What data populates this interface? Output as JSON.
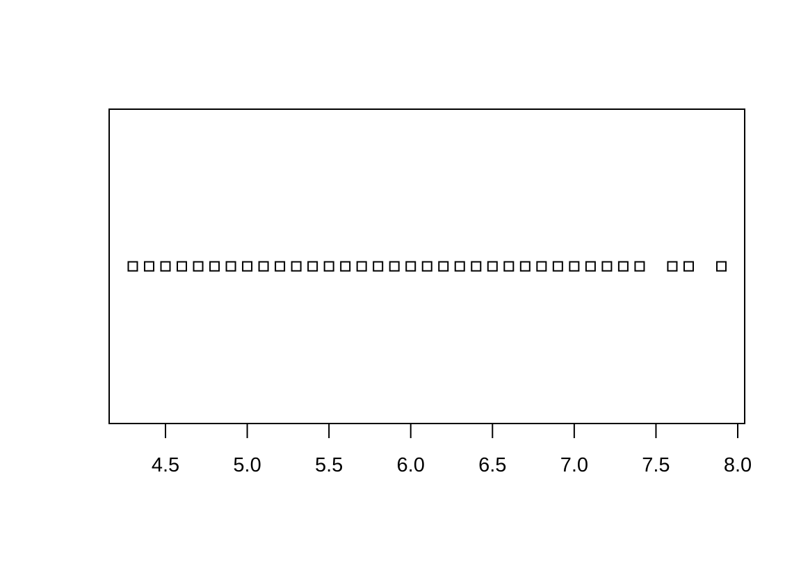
{
  "chart_data": {
    "type": "scatter",
    "title": "",
    "xlabel": "",
    "ylabel": "",
    "xlim": [
      4.3,
      7.9
    ],
    "x_ticks": [
      "4.5",
      "5.0",
      "5.5",
      "6.0",
      "6.5",
      "7.0",
      "7.5",
      "8.0"
    ],
    "x_tick_values": [
      4.5,
      5.0,
      5.5,
      6.0,
      6.5,
      7.0,
      7.5,
      8.0
    ],
    "marker": "open-square",
    "grid": false,
    "series": [
      {
        "x": [
          4.3,
          4.4,
          4.5,
          4.6,
          4.7,
          4.8,
          4.9,
          5.0,
          5.1,
          5.2,
          5.3,
          5.4,
          5.5,
          5.6,
          5.7,
          5.8,
          5.9,
          6.0,
          6.1,
          6.2,
          6.3,
          6.4,
          6.5,
          6.6,
          6.7,
          6.8,
          6.9,
          7.0,
          7.1,
          7.2,
          7.3,
          7.4,
          7.6,
          7.7,
          7.9
        ],
        "y": [
          1,
          1,
          1,
          1,
          1,
          1,
          1,
          1,
          1,
          1,
          1,
          1,
          1,
          1,
          1,
          1,
          1,
          1,
          1,
          1,
          1,
          1,
          1,
          1,
          1,
          1,
          1,
          1,
          1,
          1,
          1,
          1,
          1,
          1,
          1
        ]
      }
    ],
    "colors": {
      "marker_stroke": "#000000",
      "axis": "#000000",
      "background": "#ffffff"
    }
  }
}
